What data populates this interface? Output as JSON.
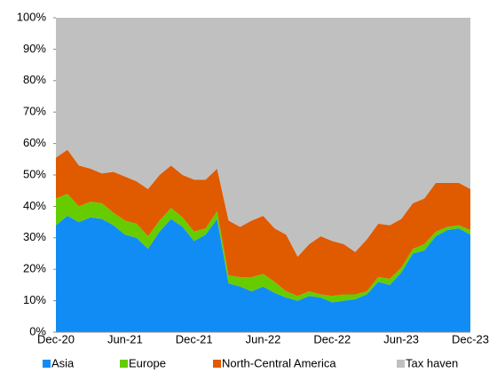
{
  "chart_data": {
    "type": "stacked_area",
    "categories": [
      "Dec-20",
      null,
      null,
      null,
      null,
      null,
      "Jun-21",
      null,
      null,
      null,
      null,
      null,
      "Dec-21",
      null,
      null,
      null,
      null,
      null,
      "Jun-22",
      null,
      null,
      null,
      null,
      null,
      "Dec-22",
      null,
      null,
      null,
      null,
      null,
      "Jun-23",
      null,
      null,
      null,
      null,
      null,
      "Dec-23"
    ],
    "series": [
      {
        "name": "Asia",
        "color": "#118cf5",
        "values": [
          34,
          37,
          35,
          36.5,
          36,
          34,
          31,
          30,
          26.5,
          32,
          36,
          33.5,
          29,
          31,
          36,
          15.5,
          14.5,
          13,
          14.5,
          12.5,
          11,
          10,
          11.5,
          11,
          9.5,
          10,
          10.5,
          12,
          16,
          15,
          19,
          25,
          26,
          30.5,
          32.5,
          33,
          31
        ]
      },
      {
        "name": "Europe",
        "color": "#66cc00",
        "values": [
          8.5,
          7,
          5,
          5,
          5,
          4,
          4.5,
          4.5,
          4,
          3.5,
          3.5,
          3,
          3,
          2,
          2.5,
          2.5,
          3,
          4.5,
          4,
          3.5,
          2,
          1.5,
          1.5,
          1,
          2,
          2,
          1.5,
          1,
          1.5,
          2,
          1.5,
          1.5,
          2,
          1.5,
          1,
          1,
          1.5
        ]
      },
      {
        "name": "North-Central America",
        "color": "#e05a00",
        "values": [
          13,
          14,
          13,
          10.5,
          9.5,
          13,
          14,
          13.5,
          15,
          14.5,
          13.5,
          13.5,
          16.5,
          15.5,
          13.5,
          17.5,
          16,
          18,
          18.5,
          17,
          18,
          12.5,
          15,
          18.5,
          17.5,
          16,
          13.5,
          16.5,
          17,
          17,
          15.5,
          14.5,
          14.5,
          15.5,
          14,
          13.5,
          13
        ]
      },
      {
        "name": "Tax haven",
        "color": "#c0c0c0",
        "values": [
          44.5,
          42,
          47,
          48,
          49.5,
          49,
          50.5,
          52,
          54.5,
          50,
          47,
          50,
          51.5,
          51.5,
          48,
          64.5,
          66.5,
          64.5,
          63,
          67,
          69,
          76,
          72,
          69.5,
          71,
          72,
          74.5,
          70.5,
          65.5,
          66,
          64,
          59,
          57.5,
          52.5,
          52.5,
          52.5,
          54.5
        ]
      }
    ],
    "ylim": [
      0,
      100
    ],
    "yticks": [
      {
        "value": 0,
        "label": "0%"
      },
      {
        "value": 10,
        "label": "10%"
      },
      {
        "value": 20,
        "label": "20%"
      },
      {
        "value": 30,
        "label": "30%"
      },
      {
        "value": 40,
        "label": "40%"
      },
      {
        "value": 50,
        "label": "50%"
      },
      {
        "value": 60,
        "label": "60%"
      },
      {
        "value": 70,
        "label": "70%"
      },
      {
        "value": 80,
        "label": "80%"
      },
      {
        "value": 90,
        "label": "90%"
      },
      {
        "value": 100,
        "label": "100%"
      }
    ],
    "legend": "bottom"
  }
}
